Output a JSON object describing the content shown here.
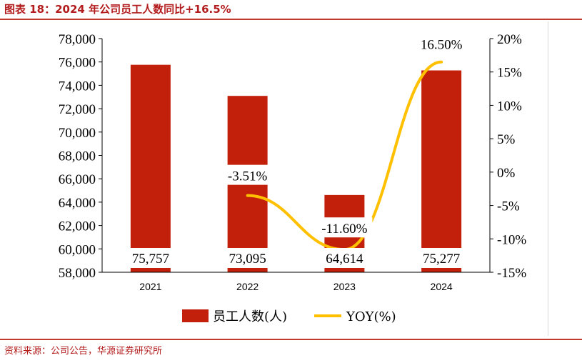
{
  "title": "图表 18：2024 年公司员工人数同比+16.5%",
  "source": "资料来源：公司公告，华源证券研究所",
  "colors": {
    "bar": "#c2200b",
    "line": "#ffc000",
    "accent": "#b31c1c"
  },
  "chart_data": {
    "type": "bar",
    "categories": [
      "2021",
      "2022",
      "2023",
      "2024"
    ],
    "series": [
      {
        "name": "员工人数(人)",
        "type": "bar",
        "axis": "left",
        "values": [
          75757,
          73095,
          64614,
          75277
        ]
      },
      {
        "name": "YOY(%)",
        "type": "line",
        "axis": "right",
        "values": [
          null,
          -3.51,
          -11.6,
          16.5
        ]
      }
    ],
    "bar_labels": [
      "75,757",
      "73,095",
      "64,614",
      "75,277"
    ],
    "line_labels": [
      "",
      "-3.51%",
      "-11.60%",
      "16.50%"
    ],
    "y_left": {
      "ylim": [
        58000,
        78000
      ],
      "ticks": [
        "58,000",
        "60,000",
        "62,000",
        "64,000",
        "66,000",
        "68,000",
        "70,000",
        "72,000",
        "74,000",
        "76,000",
        "78,000"
      ]
    },
    "y_right": {
      "ylim": [
        -15,
        20
      ],
      "ticks": [
        "-15%",
        "-10%",
        "-5%",
        "0%",
        "5%",
        "10%",
        "15%",
        "20%"
      ]
    },
    "legend_position": "bottom",
    "grid": false
  }
}
